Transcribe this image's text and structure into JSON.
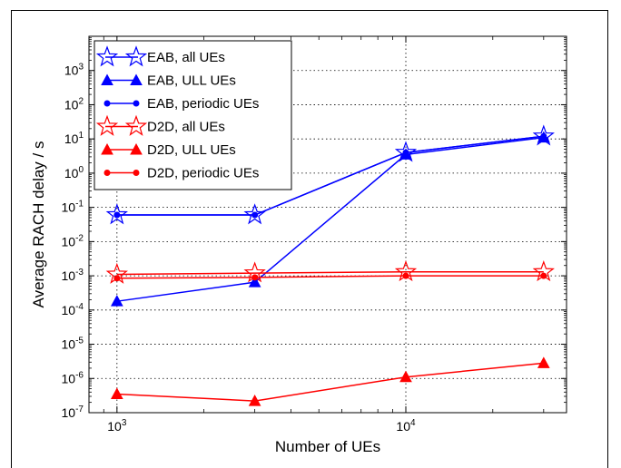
{
  "chart_data": {
    "type": "line",
    "xlabel": "Number of UEs",
    "ylabel": "Average RACH delay / s",
    "xscale": "log",
    "yscale": "log",
    "xlim": [
      800,
      36000
    ],
    "ylim": [
      1e-07,
      10000.0
    ],
    "grid": true,
    "legend_position": "top-left",
    "x_ticks": [
      {
        "value": 1000,
        "base": "10",
        "exp": "3"
      },
      {
        "value": 10000,
        "base": "10",
        "exp": "4"
      }
    ],
    "y_ticks": [
      {
        "value": 1e-07,
        "base": "10",
        "exp": "-7"
      },
      {
        "value": 1e-06,
        "base": "10",
        "exp": "-6"
      },
      {
        "value": 1e-05,
        "base": "10",
        "exp": "-5"
      },
      {
        "value": 0.0001,
        "base": "10",
        "exp": "-4"
      },
      {
        "value": 0.001,
        "base": "10",
        "exp": "-3"
      },
      {
        "value": 0.01,
        "base": "10",
        "exp": "-2"
      },
      {
        "value": 0.1,
        "base": "10",
        "exp": "-1"
      },
      {
        "value": 1,
        "base": "10",
        "exp": "0"
      },
      {
        "value": 10,
        "base": "10",
        "exp": "1"
      },
      {
        "value": 100,
        "base": "10",
        "exp": "2"
      },
      {
        "value": 1000,
        "base": "10",
        "exp": "3"
      }
    ],
    "x": [
      1000,
      3000,
      10000,
      30000
    ],
    "series": [
      {
        "name": "EAB, all UEs",
        "color": "#0000ff",
        "marker": "star-open",
        "values": [
          0.06,
          0.06,
          4.0,
          12.0
        ]
      },
      {
        "name": "EAB, ULL UEs",
        "color": "#0000ff",
        "marker": "triangle",
        "values": [
          0.00018,
          0.00065,
          3.5,
          11.0
        ]
      },
      {
        "name": "EAB, periodic UEs",
        "color": "#0000ff",
        "marker": "dot",
        "values": [
          0.06,
          0.06,
          4.0,
          12.0
        ]
      },
      {
        "name": "D2D, all UEs",
        "color": "#ff0000",
        "marker": "star-open",
        "values": [
          0.0011,
          0.0012,
          0.0013,
          0.0013
        ]
      },
      {
        "name": "D2D, ULL UEs",
        "color": "#ff0000",
        "marker": "triangle",
        "values": [
          3.5e-07,
          2.2e-07,
          1.1e-06,
          2.8e-06
        ]
      },
      {
        "name": "D2D, periodic UEs",
        "color": "#ff0000",
        "marker": "dot",
        "values": [
          0.00085,
          0.0009,
          0.001,
          0.001
        ]
      }
    ]
  }
}
